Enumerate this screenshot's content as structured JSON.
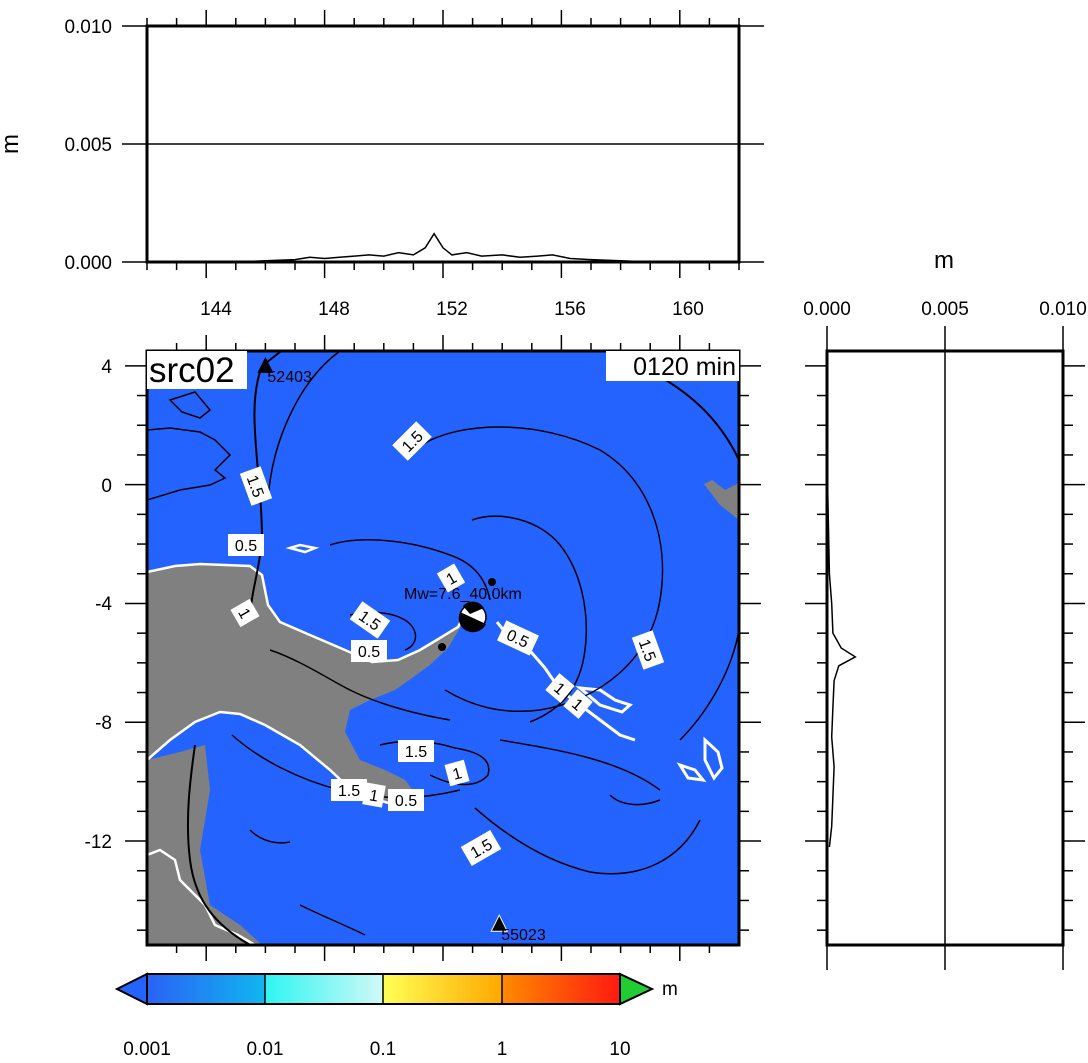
{
  "chart_data": [
    {
      "type": "line",
      "panel": "top-profile",
      "ylabel": "m",
      "ylim": [
        0,
        0.01
      ],
      "yticks": [
        "0.000",
        "0.005",
        "0.010"
      ],
      "xlim": [
        142,
        162
      ],
      "xticks": [
        "144",
        "148",
        "152",
        "156",
        "160"
      ],
      "grid": "horizontal line at 0.005",
      "series": [
        {
          "x": [
            145.0,
            146.0,
            147.0,
            147.5,
            148.0,
            148.5,
            149.0,
            149.5,
            150.0,
            150.5,
            151.0,
            151.4,
            151.7,
            152.0,
            152.3,
            152.8,
            153.3,
            154.0,
            154.6,
            155.2,
            155.7,
            156.3,
            157.0,
            158.0,
            159.0
          ],
          "y": [
            0.0,
            5e-05,
            0.0001,
            0.0002,
            0.00015,
            0.0002,
            0.00025,
            0.0003,
            0.00025,
            0.0004,
            0.0003,
            0.0006,
            0.0012,
            0.0006,
            0.0003,
            0.0004,
            0.00025,
            0.0003,
            0.0002,
            0.00025,
            0.0003,
            0.00015,
            0.0001,
            5e-05,
            0.0
          ]
        }
      ]
    },
    {
      "type": "line",
      "panel": "right-profile",
      "xlabel": "m",
      "xlim": [
        0,
        0.01
      ],
      "xticks": [
        "0.000",
        "0.005",
        "0.010"
      ],
      "grid": "vertical line at 0.005",
      "series": [
        {
          "y": [
            1.0,
            -1.0,
            -3.0,
            -4.0,
            -5.0,
            -5.5,
            -5.8,
            -6.1,
            -6.6,
            -7.5,
            -8.5,
            -9.5,
            -10.5,
            -11.5,
            -12.2
          ],
          "x": [
            0.0,
            5e-05,
            0.0001,
            0.0002,
            0.00025,
            0.0006,
            0.0012,
            0.0005,
            0.0003,
            0.00025,
            0.0002,
            0.0003,
            0.00025,
            0.0002,
            0.0001
          ]
        }
      ]
    },
    {
      "type": "heatmap",
      "panel": "map",
      "title": "src02",
      "time_label": "0120 min",
      "xlim": [
        142,
        162
      ],
      "ylim": [
        -15.5,
        4.5
      ],
      "yticks": [
        "4",
        "0",
        "-4",
        "-8",
        "-12"
      ],
      "ocean_color": "#2563FF",
      "land_color": "#808080",
      "source_label": "Mw=7.6_40.0km",
      "stations": [
        {
          "name": "52403",
          "lon": 146.0,
          "lat": 4.0
        },
        {
          "name": "55023",
          "lon": 153.9,
          "lat": -14.8
        }
      ],
      "contour_labels": [
        "1.5",
        "1.5",
        "0.5",
        "1",
        "1.5",
        "0.5",
        "1",
        "0.5",
        "1.5",
        "1",
        "1",
        "1.5",
        "1",
        "1.5",
        "1",
        "0.5",
        "1.5"
      ]
    }
  ],
  "colorbar": {
    "unit": "m",
    "ticks": [
      "0.001",
      "0.01",
      "0.1",
      "1",
      "10"
    ],
    "colors": {
      "under": "#2563FF",
      "over": "#22CC33"
    }
  }
}
